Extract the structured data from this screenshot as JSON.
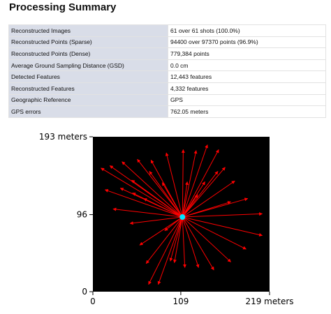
{
  "header": {
    "title": "Processing Summary"
  },
  "table": {
    "rows": [
      [
        "Reconstructed Images",
        "61 over 61 shots (100.0%)"
      ],
      [
        "Reconstructed Points (Sparse)",
        "94400 over 97370 points (96.9%)"
      ],
      [
        "Reconstructed Points (Dense)",
        "779,384 points"
      ],
      [
        "Average Ground Sampling Distance (GSD)",
        "0.0 cm"
      ],
      [
        "Detected Features",
        "12,443 features"
      ],
      [
        "Reconstructed Features",
        "4,332 features"
      ],
      [
        "Geographic Reference",
        "GPS"
      ],
      [
        "GPS errors",
        "762.05 meters"
      ]
    ]
  },
  "chart_data": {
    "type": "quiver",
    "origin": {
      "x": 111,
      "y": 93
    },
    "origin_color": "#00e5ff",
    "color": "#ff0000",
    "background": "#000000",
    "x": [
      10,
      21,
      36,
      55,
      72,
      91,
      112,
      128,
      142,
      156,
      164,
      176,
      192,
      210,
      210,
      190,
      171,
      150,
      131,
      114,
      101,
      81,
      69,
      66,
      58,
      46,
      25,
      15,
      34,
      49,
      63,
      48,
      70,
      155,
      171,
      89,
      117,
      130,
      86,
      139,
      96
    ],
    "y": [
      154,
      157,
      162,
      165,
      164,
      173,
      177,
      176,
      183,
      177,
      155,
      138,
      116,
      97,
      70,
      53,
      37,
      27,
      30,
      30,
      36,
      9,
      9,
      35,
      58,
      85,
      103,
      127,
      129,
      123,
      116,
      139,
      150,
      150,
      112,
      76,
      137,
      121,
      136,
      137,
      38
    ],
    "xlim": [
      0,
      219
    ],
    "ylim": [
      0,
      193
    ],
    "xticks": [
      0,
      109,
      {
        "value": 219,
        "label": "219 meters"
      }
    ],
    "yticks": [
      0,
      96,
      {
        "value": 193,
        "label": "193 meters"
      }
    ]
  }
}
